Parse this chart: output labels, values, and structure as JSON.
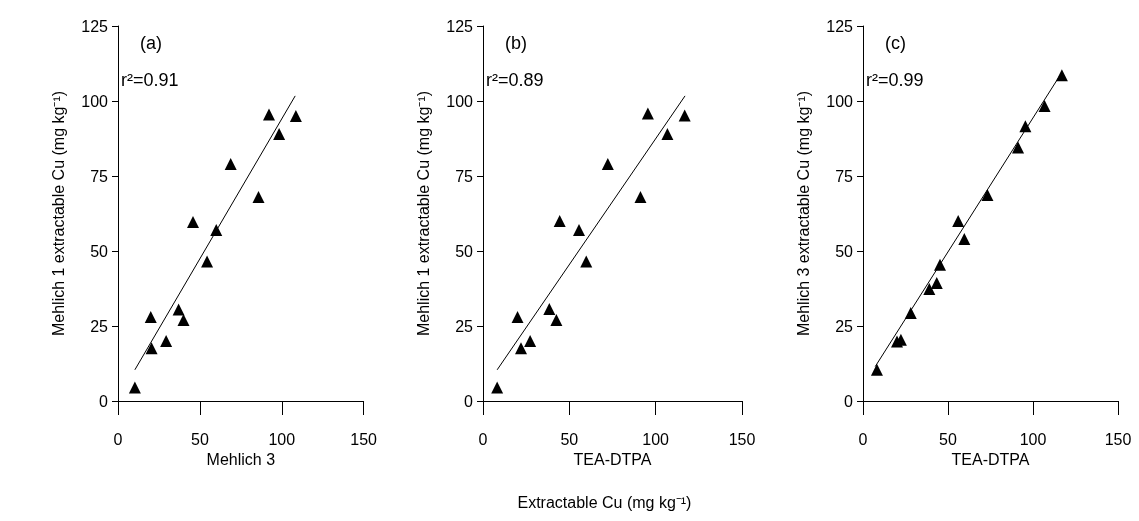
{
  "chart_data": [
    {
      "type": "scatter",
      "title": "(a)",
      "xlabel": "Mehlich 3",
      "ylabel": "Mehlich 1 extractable Cu (mg kg⁻¹)",
      "annotations": [
        "r²=0.91"
      ],
      "xlim": [
        0,
        150
      ],
      "xticks": [
        0,
        50,
        100,
        150
      ],
      "ylim": [
        0,
        125
      ],
      "yticks": [
        0,
        25,
        50,
        75,
        100,
        125
      ],
      "grid": false,
      "series": [
        {
          "marker": "triangle",
          "color": "#000000",
          "x": [
            10.3,
            20,
            20.5,
            29.4,
            37,
            40,
            45.8,
            54.4,
            60,
            68.8,
            85.8,
            92.2,
            98.4,
            108.6
          ],
          "values": [
            4.5,
            28,
            17.6,
            20,
            30.5,
            27,
            59.7,
            46.5,
            57,
            79,
            68,
            95.5,
            89,
            95
          ]
        },
        {
          "type": "line",
          "marker": "none",
          "line_style": "solid",
          "color": "#000000",
          "x": [
            10.3,
            108.2
          ],
          "values": [
            10.4,
            101.7
          ]
        }
      ]
    },
    {
      "type": "scatter",
      "title": "(b)",
      "xlabel": "TEA-DTPA",
      "ylabel": "Mehlich 1 extractable Cu (mg kg⁻¹)",
      "annotations": [
        "r²=0.89",
        "Extractable Cu (mg kg⁻¹)"
      ],
      "xlim": [
        0,
        150
      ],
      "xticks": [
        0,
        50,
        100,
        150
      ],
      "ylim": [
        0,
        125
      ],
      "yticks": [
        0,
        25,
        50,
        75,
        100,
        125
      ],
      "grid": false,
      "series": [
        {
          "marker": "triangle",
          "color": "#000000",
          "x": [
            8.2,
            20,
            22,
            27.3,
            38.4,
            42.5,
            44.4,
            55.6,
            59.8,
            72.3,
            91.2,
            95.5,
            106.8,
            116.8
          ],
          "values": [
            4.5,
            28,
            17.6,
            20,
            30.7,
            27,
            60,
            57,
            46.5,
            79,
            68,
            95.8,
            89,
            95.2
          ]
        },
        {
          "type": "line",
          "marker": "none",
          "line_style": "solid",
          "color": "#000000",
          "x": [
            8.2,
            117
          ],
          "values": [
            10.4,
            101.7
          ]
        }
      ]
    },
    {
      "type": "scatter",
      "title": "(c)",
      "xlabel": "TEA-DTPA",
      "ylabel": "Mehlich 3 extractable Cu (mg kg⁻¹)",
      "annotations": [
        "r²=0.99"
      ],
      "xlim": [
        0,
        150
      ],
      "xticks": [
        0,
        50,
        100,
        150
      ],
      "ylim": [
        0,
        125
      ],
      "yticks": [
        0,
        25,
        50,
        75,
        100,
        125
      ],
      "grid": false,
      "series": [
        {
          "marker": "triangle",
          "color": "#000000",
          "x": [
            8.2,
            20,
            22.3,
            28.1,
            39,
            43.4,
            45.3,
            56,
            59.6,
            73.2,
            91.2,
            95.5,
            106.8,
            117
          ],
          "values": [
            10.4,
            19.8,
            20.4,
            29.3,
            37.3,
            39.3,
            45.4,
            60,
            54,
            68.7,
            84.5,
            91.6,
            98.3,
            108.6
          ]
        },
        {
          "type": "line",
          "marker": "none",
          "line_style": "solid",
          "color": "#000000",
          "x": [
            7.2,
            116.6
          ],
          "values": [
            11.5,
            109.2
          ]
        }
      ]
    }
  ]
}
